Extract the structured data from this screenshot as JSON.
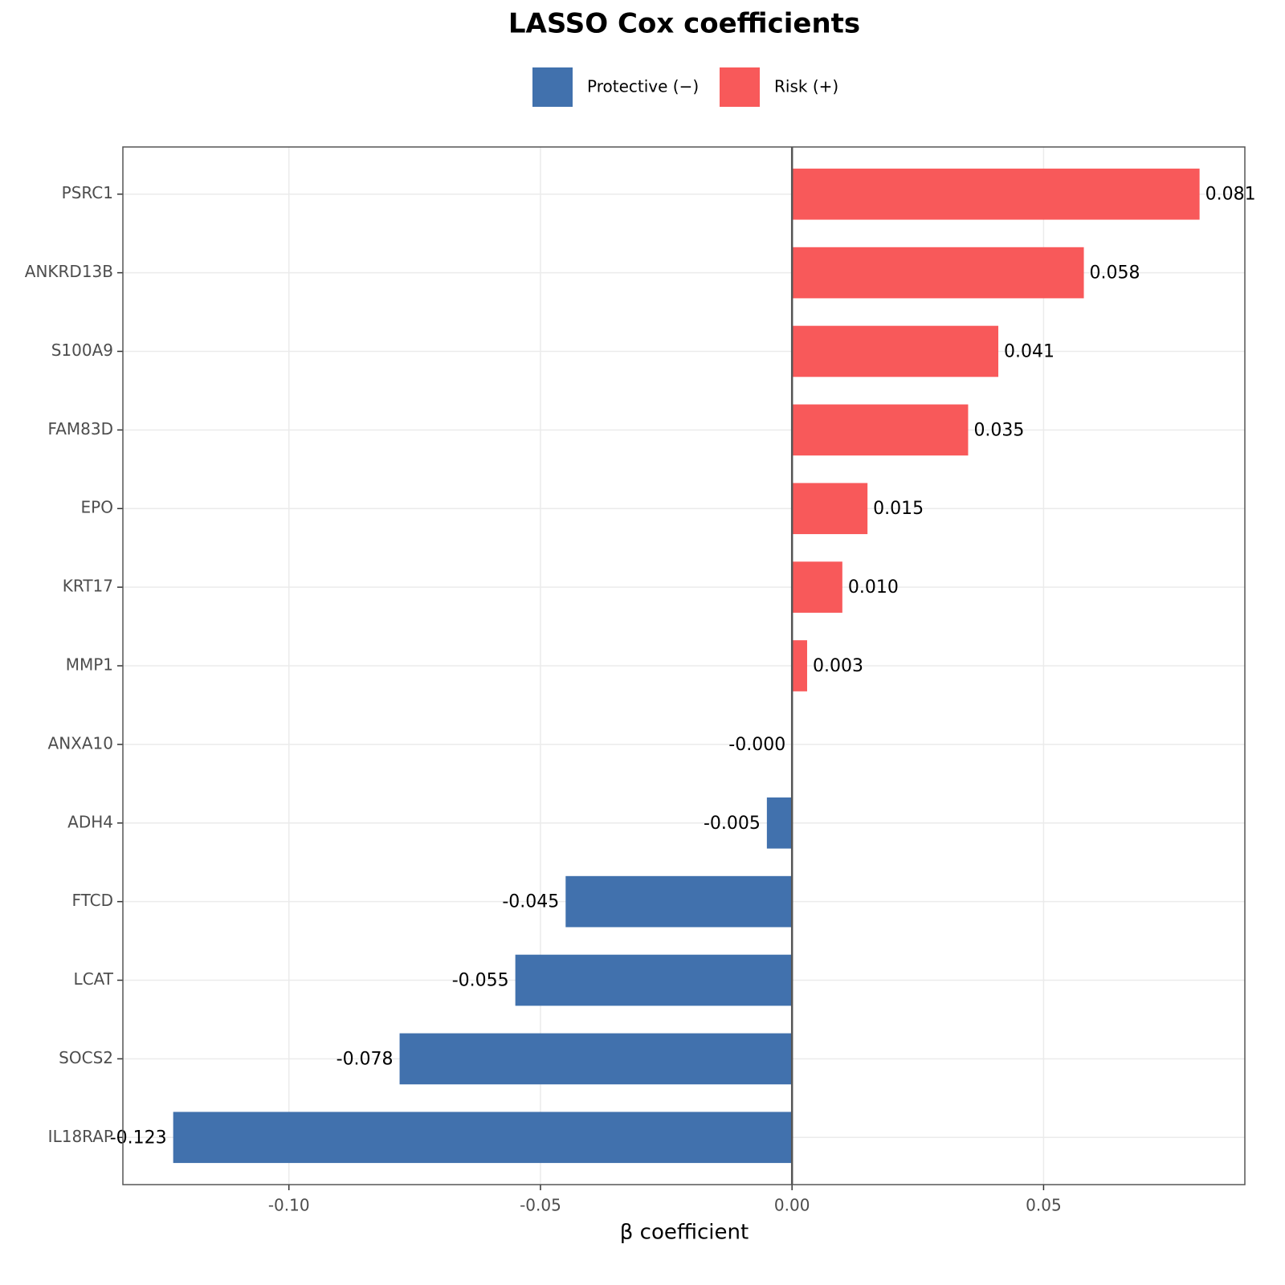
{
  "chart_data": {
    "type": "barh",
    "title": "LASSO Cox coefficients",
    "x_label": "β coefficient",
    "categories": [
      "PSRC1",
      "ANKRD13B",
      "S100A9",
      "FAM83D",
      "EPO",
      "KRT17",
      "MMP1",
      "ANXA10",
      "ADH4",
      "FTCD",
      "LCAT",
      "SOCS2",
      "IL18RAP"
    ],
    "series": [
      {
        "name": "Protective (−)",
        "color": "#4171ad",
        "values": [
          null,
          null,
          null,
          null,
          null,
          null,
          null,
          0,
          -0.005,
          -0.045,
          -0.055,
          -0.078,
          -0.123
        ],
        "value_labels": [
          null,
          null,
          null,
          null,
          null,
          null,
          null,
          "-0.000",
          "-0.005",
          "-0.045",
          "-0.055",
          "-0.078",
          "-0.123"
        ]
      },
      {
        "name": "Risk (+)",
        "color": "#f8595a",
        "values": [
          0.081,
          0.058,
          0.041,
          0.035,
          0.015,
          0.01,
          0.003,
          null,
          null,
          null,
          null,
          null,
          null
        ],
        "value_labels": [
          "0.081",
          "0.058",
          "0.041",
          "0.035",
          "0.015",
          "0.010",
          "0.003",
          null,
          null,
          null,
          null,
          null,
          null
        ]
      }
    ],
    "xlim": [
      -0.133,
      0.09
    ],
    "xticks": [
      {
        "value": -0.1,
        "label": "-0.10"
      },
      {
        "value": -0.05,
        "label": "-0.05"
      },
      {
        "value": 0,
        "label": "0.00"
      },
      0.05
    ],
    "grid": true,
    "legend": "top"
  }
}
